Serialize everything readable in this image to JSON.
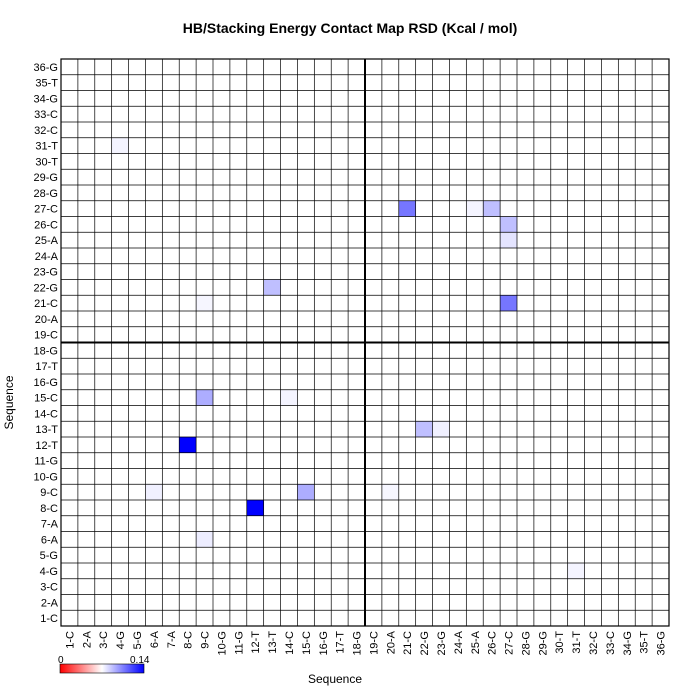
{
  "chart_data": {
    "type": "heatmap",
    "title": "HB/Stacking Energy Contact Map RSD (Kcal / mol)",
    "xlabel": "Sequence",
    "ylabel": "Sequence",
    "labels": [
      "1-C",
      "2-A",
      "3-C",
      "4-G",
      "5-G",
      "6-A",
      "7-A",
      "8-C",
      "9-C",
      "10-G",
      "11-G",
      "12-T",
      "13-T",
      "14-C",
      "15-C",
      "16-G",
      "17-T",
      "18-G",
      "19-C",
      "20-A",
      "21-C",
      "22-G",
      "23-G",
      "24-A",
      "25-A",
      "26-C",
      "27-C",
      "28-G",
      "29-G",
      "30-T",
      "31-T",
      "32-C",
      "33-C",
      "34-G",
      "35-T",
      "36-G"
    ],
    "strand_divider_after": "18-G",
    "color_scale": {
      "min": 0,
      "max": 0.14,
      "low_color": "#ff0000",
      "mid_color": "#ffffff",
      "high_color": "#0000ff",
      "min_label": "0",
      "max_label": "0.14"
    },
    "cells": [
      {
        "x": "12-T",
        "y": "8-C",
        "value": 0.14
      },
      {
        "x": "8-C",
        "y": "12-T",
        "value": 0.14
      },
      {
        "x": "15-C",
        "y": "9-C",
        "value": 0.045
      },
      {
        "x": "9-C",
        "y": "15-C",
        "value": 0.045
      },
      {
        "x": "22-G",
        "y": "13-T",
        "value": 0.035
      },
      {
        "x": "13-T",
        "y": "22-G",
        "value": 0.035
      },
      {
        "x": "21-C",
        "y": "27-C",
        "value": 0.075
      },
      {
        "x": "27-C",
        "y": "21-C",
        "value": 0.075
      },
      {
        "x": "27-C",
        "y": "26-C",
        "value": 0.035
      },
      {
        "x": "26-C",
        "y": "27-C",
        "value": 0.035
      },
      {
        "x": "27-C",
        "y": "25-A",
        "value": 0.015
      },
      {
        "x": "9-C",
        "y": "6-A",
        "value": 0.01
      },
      {
        "x": "6-A",
        "y": "9-C",
        "value": 0.008
      },
      {
        "x": "4-G",
        "y": "31-T",
        "value": 0.006
      },
      {
        "x": "23-G",
        "y": "13-T",
        "value": 0.008
      },
      {
        "x": "14-C",
        "y": "15-C",
        "value": 0.006
      },
      {
        "x": "31-T",
        "y": "4-G",
        "value": 0.006
      },
      {
        "x": "25-A",
        "y": "27-C",
        "value": 0.006
      },
      {
        "x": "9-C",
        "y": "21-C",
        "value": 0.005
      },
      {
        "x": "20-A",
        "y": "9-C",
        "value": 0.005
      }
    ]
  }
}
